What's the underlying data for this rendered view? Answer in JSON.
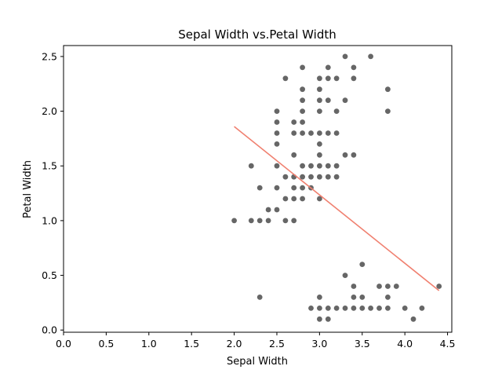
{
  "chart_data": {
    "type": "scatter",
    "title": "Sepal Width vs.Petal Width",
    "xlabel": "Sepal Width",
    "ylabel": "Petal Width",
    "xlim": [
      0.0,
      4.55
    ],
    "ylim": [
      -0.02,
      2.6
    ],
    "xticks": [
      "0.0",
      "0.5",
      "1.0",
      "1.5",
      "2.0",
      "2.5",
      "3.0",
      "3.5",
      "4.0",
      "4.5"
    ],
    "yticks": [
      "0.0",
      "0.5",
      "1.0",
      "1.5",
      "2.0",
      "2.5"
    ],
    "grid": false,
    "colors": {
      "points": "#666666",
      "trend": "#f08070",
      "axes": "#000000",
      "background": "#ffffff"
    },
    "points": [
      [
        2.0,
        1.0
      ],
      [
        2.2,
        1.0
      ],
      [
        2.2,
        1.5
      ],
      [
        2.3,
        0.3
      ],
      [
        2.3,
        1.0
      ],
      [
        2.3,
        1.3
      ],
      [
        2.4,
        1.0
      ],
      [
        2.4,
        1.1
      ],
      [
        2.5,
        1.1
      ],
      [
        2.5,
        1.3
      ],
      [
        2.5,
        1.5
      ],
      [
        2.5,
        1.7
      ],
      [
        2.5,
        1.8
      ],
      [
        2.5,
        1.9
      ],
      [
        2.5,
        2.0
      ],
      [
        2.6,
        1.0
      ],
      [
        2.6,
        1.2
      ],
      [
        2.6,
        1.4
      ],
      [
        2.6,
        2.3
      ],
      [
        2.7,
        1.0
      ],
      [
        2.7,
        1.2
      ],
      [
        2.7,
        1.3
      ],
      [
        2.7,
        1.4
      ],
      [
        2.7,
        1.6
      ],
      [
        2.7,
        1.8
      ],
      [
        2.7,
        1.9
      ],
      [
        2.8,
        1.2
      ],
      [
        2.8,
        1.3
      ],
      [
        2.8,
        1.4
      ],
      [
        2.8,
        1.5
      ],
      [
        2.8,
        1.8
      ],
      [
        2.8,
        1.9
      ],
      [
        2.8,
        2.0
      ],
      [
        2.8,
        2.1
      ],
      [
        2.8,
        2.2
      ],
      [
        2.8,
        2.4
      ],
      [
        2.9,
        0.2
      ],
      [
        2.9,
        1.3
      ],
      [
        2.9,
        1.4
      ],
      [
        2.9,
        1.5
      ],
      [
        2.9,
        1.8
      ],
      [
        3.0,
        0.1
      ],
      [
        3.0,
        0.2
      ],
      [
        3.0,
        0.3
      ],
      [
        3.0,
        1.2
      ],
      [
        3.0,
        1.4
      ],
      [
        3.0,
        1.5
      ],
      [
        3.0,
        1.6
      ],
      [
        3.0,
        1.7
      ],
      [
        3.0,
        1.8
      ],
      [
        3.0,
        2.0
      ],
      [
        3.0,
        2.1
      ],
      [
        3.0,
        2.2
      ],
      [
        3.0,
        2.3
      ],
      [
        3.1,
        0.1
      ],
      [
        3.1,
        0.2
      ],
      [
        3.1,
        1.4
      ],
      [
        3.1,
        1.5
      ],
      [
        3.1,
        1.8
      ],
      [
        3.1,
        2.1
      ],
      [
        3.1,
        2.3
      ],
      [
        3.1,
        2.4
      ],
      [
        3.2,
        0.2
      ],
      [
        3.2,
        1.4
      ],
      [
        3.2,
        1.5
      ],
      [
        3.2,
        1.8
      ],
      [
        3.2,
        2.0
      ],
      [
        3.2,
        2.3
      ],
      [
        3.3,
        0.2
      ],
      [
        3.3,
        0.5
      ],
      [
        3.3,
        1.6
      ],
      [
        3.3,
        2.1
      ],
      [
        3.3,
        2.5
      ],
      [
        3.4,
        0.2
      ],
      [
        3.4,
        0.3
      ],
      [
        3.4,
        0.4
      ],
      [
        3.4,
        1.6
      ],
      [
        3.4,
        2.3
      ],
      [
        3.4,
        2.4
      ],
      [
        3.5,
        0.2
      ],
      [
        3.5,
        0.3
      ],
      [
        3.5,
        0.6
      ],
      [
        3.6,
        0.2
      ],
      [
        3.6,
        2.5
      ],
      [
        3.7,
        0.2
      ],
      [
        3.7,
        0.4
      ],
      [
        3.8,
        0.2
      ],
      [
        3.8,
        0.3
      ],
      [
        3.8,
        0.4
      ],
      [
        3.8,
        2.0
      ],
      [
        3.8,
        2.2
      ],
      [
        3.9,
        0.4
      ],
      [
        4.0,
        0.2
      ],
      [
        4.1,
        0.1
      ],
      [
        4.2,
        0.2
      ],
      [
        4.4,
        0.4
      ]
    ],
    "trendline": [
      [
        2.0,
        1.86
      ],
      [
        4.4,
        0.36
      ]
    ]
  }
}
